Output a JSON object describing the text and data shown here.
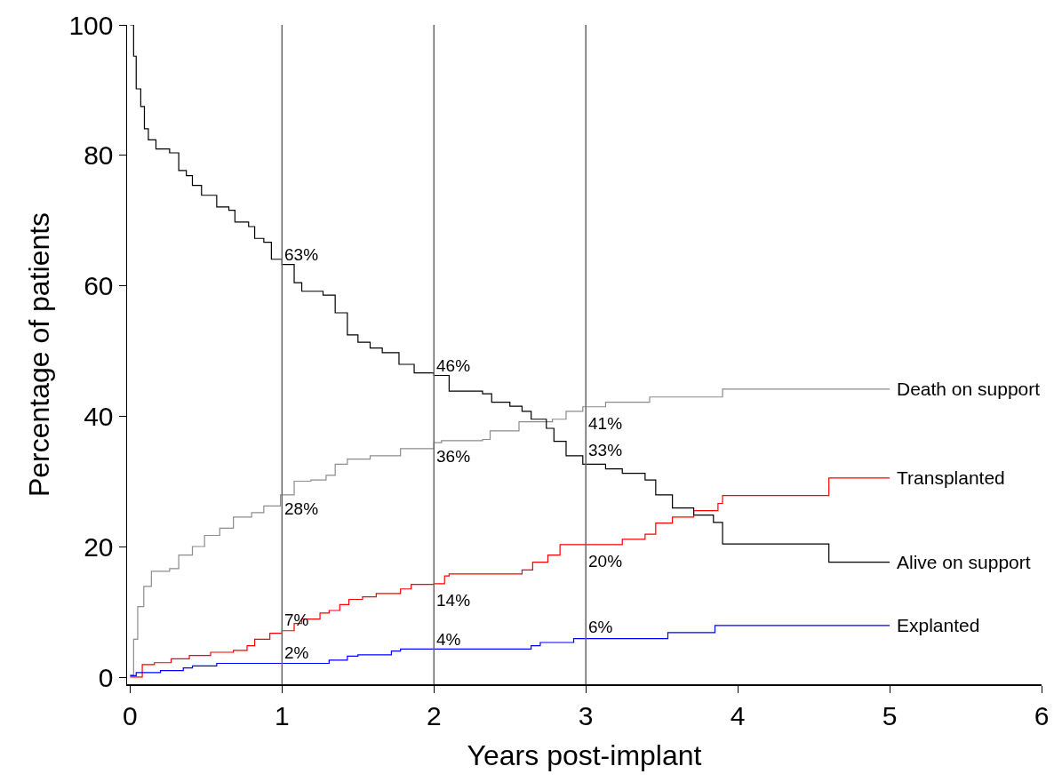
{
  "chart_data": {
    "type": "step",
    "xlabel": "Years post-implant",
    "ylabel": "Percentage of patients",
    "xlim": [
      -0.02,
      6
    ],
    "xticks": [
      0,
      1,
      2,
      3,
      4,
      5,
      6
    ],
    "ylim": [
      -1,
      100
    ],
    "yticks": [
      0,
      20,
      40,
      60,
      80,
      100
    ],
    "grid": false,
    "legend": false,
    "series": [
      {
        "name": "Death on support",
        "color": "#8c8c8c",
        "x": [
          0,
          0.023,
          0.05,
          0.09,
          0.14,
          0.26,
          0.32,
          0.41,
          0.49,
          0.59,
          0.68,
          0.8,
          0.88,
          0.99,
          1.08,
          1.19,
          1.29,
          1.35,
          1.43,
          1.58,
          1.78,
          2.0,
          2.05,
          2.32,
          2.37,
          2.56,
          2.78,
          2.87,
          2.98,
          3.13,
          3.42,
          3.9,
          5.0
        ],
        "values": [
          0.4,
          5.9,
          10.9,
          14,
          16.3,
          16.7,
          18.8,
          20.1,
          21.8,
          22.9,
          24.6,
          25.3,
          26.3,
          28,
          30.1,
          30.3,
          31,
          32.7,
          33.5,
          34,
          35.1,
          36,
          36.3,
          36.5,
          37.8,
          39.2,
          39.6,
          40.8,
          41.5,
          42.2,
          43,
          44.2,
          44.2
        ]
      },
      {
        "name": "Transplanted",
        "color": "#ff0000",
        "x": [
          0,
          0.08,
          0.16,
          0.27,
          0.39,
          0.53,
          0.68,
          0.77,
          0.82,
          0.92,
          1.0,
          1.08,
          1.13,
          1.25,
          1.31,
          1.38,
          1.44,
          1.53,
          1.62,
          1.78,
          1.85,
          2.0,
          2.07,
          2.1,
          2.58,
          2.65,
          2.75,
          2.83,
          3.24,
          3.39,
          3.46,
          3.57,
          3.71,
          3.87,
          3.9,
          4.6,
          5.0
        ],
        "values": [
          0.1,
          2,
          2.3,
          2.9,
          3.4,
          3.9,
          4.2,
          4.9,
          5.9,
          6.8,
          7.2,
          8.3,
          9,
          9.9,
          10.3,
          11.2,
          12,
          12.4,
          12.9,
          13.6,
          14.3,
          14.4,
          15.6,
          15.9,
          16.5,
          17.7,
          18.8,
          20.4,
          21.2,
          22,
          23.7,
          24.6,
          25.6,
          26.7,
          27.9,
          30.6,
          30.6
        ]
      },
      {
        "name": "Alive on support",
        "color": "#000000",
        "x": [
          0,
          0.023,
          0.04,
          0.07,
          0.094,
          0.12,
          0.17,
          0.26,
          0.32,
          0.37,
          0.41,
          0.47,
          0.57,
          0.65,
          0.69,
          0.78,
          0.82,
          0.88,
          0.93,
          1.0,
          1.08,
          1.13,
          1.27,
          1.35,
          1.43,
          1.5,
          1.58,
          1.66,
          1.77,
          1.87,
          2.0,
          2.1,
          2.32,
          2.38,
          2.5,
          2.58,
          2.64,
          2.74,
          2.79,
          2.87,
          2.98,
          3.13,
          3.24,
          3.39,
          3.46,
          3.57,
          3.71,
          3.84,
          3.9,
          4.6,
          5.0
        ],
        "values": [
          100,
          95.2,
          90.2,
          87.5,
          84.1,
          82.4,
          81,
          80.4,
          77.7,
          76.9,
          75.4,
          73.9,
          72.1,
          71.6,
          69.8,
          69.1,
          67.3,
          66.7,
          64.1,
          63.3,
          60.5,
          59.2,
          58.6,
          55.9,
          52.5,
          51.4,
          50.5,
          49.8,
          48,
          46.7,
          46.3,
          43.9,
          43.5,
          42.2,
          41.6,
          40.8,
          39.6,
          38.2,
          36.2,
          34,
          32.7,
          32,
          31.3,
          30.3,
          28,
          26,
          24.9,
          23.8,
          20.5,
          17.7,
          17.7
        ]
      },
      {
        "name": "Explanted",
        "color": "#0000ff",
        "x": [
          0,
          0.04,
          0.2,
          0.35,
          0.41,
          0.57,
          1.31,
          1.43,
          1.5,
          1.72,
          1.78,
          2.64,
          2.7,
          2.92,
          3.54,
          3.85,
          5.0
        ],
        "values": [
          0.3,
          0.8,
          1.1,
          1.5,
          1.8,
          2.2,
          2.7,
          3.3,
          3.5,
          4.1,
          4.4,
          4.9,
          5.4,
          6,
          6.9,
          8,
          8
        ]
      }
    ],
    "ref_lines": [
      {
        "axis": "x",
        "value": 1,
        "color": "#666666"
      },
      {
        "axis": "x",
        "value": 2,
        "color": "#666666"
      },
      {
        "axis": "x",
        "value": 3,
        "color": "#666666"
      }
    ],
    "annotations": [
      {
        "text": "63%",
        "x": 1,
        "y": 63
      },
      {
        "text": "28%",
        "x": 1,
        "y": 28
      },
      {
        "text": "7%",
        "x": 1,
        "y": 7
      },
      {
        "text": "2%",
        "x": 1,
        "y": 2
      },
      {
        "text": "46%",
        "x": 2,
        "y": 46
      },
      {
        "text": "36%",
        "x": 2,
        "y": 36
      },
      {
        "text": "14%",
        "x": 2,
        "y": 14
      },
      {
        "text": "4%",
        "x": 2,
        "y": 4
      },
      {
        "text": "41%",
        "x": 3,
        "y": 41
      },
      {
        "text": "33%",
        "x": 3,
        "y": 33
      },
      {
        "text": "20%",
        "x": 3,
        "y": 20
      },
      {
        "text": "6%",
        "x": 3,
        "y": 6
      }
    ]
  }
}
